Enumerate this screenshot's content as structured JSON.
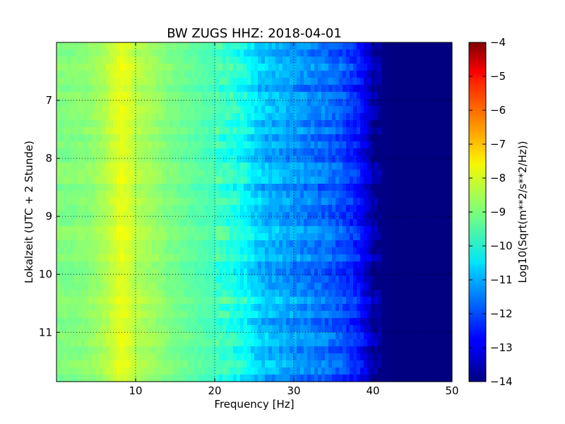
{
  "chart_data": {
    "type": "heatmap",
    "title": "BW ZUGS HHZ: 2018-04-01",
    "xlabel": "Frequency [Hz]",
    "ylabel": "Lokalzeit (UTC + 2 Stunde)",
    "colorbar_label": "Log10(Sqrt(m**2/s**2/Hz))",
    "colormap": "jet",
    "xlim": [
      0,
      50
    ],
    "ylim": [
      6.0,
      11.85
    ],
    "y_inverted": true,
    "clim": [
      -14,
      -4
    ],
    "grid": true,
    "x_ticks": [
      10,
      20,
      30,
      40,
      50
    ],
    "x_tick_labels": [
      "10",
      "20",
      "30",
      "40",
      "50"
    ],
    "y_ticks": [
      7,
      8,
      9,
      10,
      11
    ],
    "y_tick_labels": [
      "7",
      "8",
      "9",
      "10",
      "11"
    ],
    "colorbar_ticks": [
      -4,
      -5,
      -6,
      -7,
      -8,
      -9,
      -10,
      -11,
      -12,
      -13,
      -14
    ],
    "colorbar_tick_labels": [
      "−4",
      "−5",
      "−6",
      "−7",
      "−8",
      "−9",
      "−10",
      "−11",
      "−12",
      "−13",
      "−14"
    ],
    "frequency_profile": {
      "frequency_hz": [
        0,
        2,
        4,
        6,
        7,
        8,
        9,
        10,
        12,
        14,
        16,
        18,
        20,
        22,
        24,
        25,
        26,
        28,
        30,
        32,
        34,
        36,
        38,
        39,
        40,
        41,
        42,
        44,
        46,
        48,
        50
      ],
      "log10_amplitude": [
        -9.0,
        -9.0,
        -8.9,
        -8.6,
        -8.3,
        -8.0,
        -8.1,
        -8.5,
        -8.7,
        -9.0,
        -9.2,
        -9.4,
        -9.6,
        -9.9,
        -10.2,
        -10.6,
        -10.9,
        -11.1,
        -11.3,
        -11.5,
        -11.7,
        -12.0,
        -12.5,
        -13.0,
        -13.6,
        -13.9,
        -14.0,
        -14.0,
        -14.0,
        -14.0,
        -14.0
      ]
    }
  }
}
